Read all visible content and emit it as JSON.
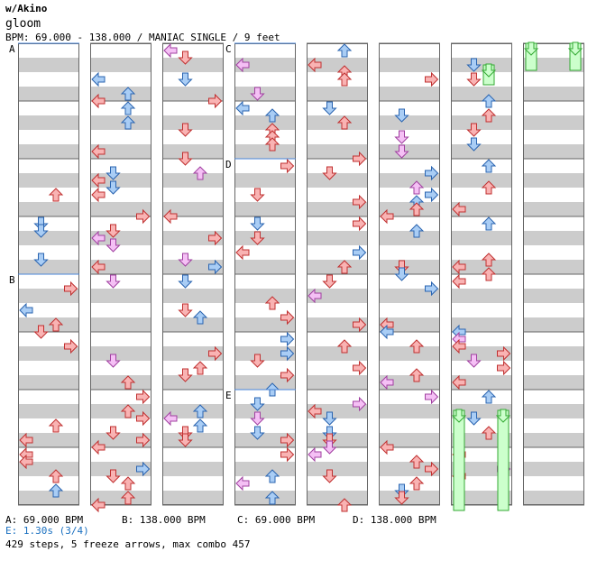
{
  "header": {
    "artist": "w/Akino",
    "title": "gloom",
    "info": "BPM: 69.000 - 138.000 / MANIAC SINGLE / 9 feet"
  },
  "section_markers": [
    "A",
    "B",
    "C",
    "D",
    "E"
  ],
  "footer": {
    "bpm_a": "A: 69.000 BPM",
    "bpm_b": "B: 138.000 BPM",
    "bpm_c": "C: 69.000 BPM",
    "bpm_d": "D: 138.000 BPM",
    "stop": "E: 1.30s (3/4)",
    "summary": "429 steps, 5 freeze arrows, max combo 457"
  },
  "colors": {
    "stripe": "#cccccc",
    "border": "#666666",
    "marker_line": "#4a86d8",
    "arrow_red": "#f9b3b3",
    "arrow_red_stroke": "#c03030",
    "arrow_blue": "#a9cdf5",
    "arrow_blue_stroke": "#2a64b0",
    "arrow_pink": "#f5c0f5",
    "arrow_pink_stroke": "#a040a0",
    "freeze": "#ccffcc",
    "freeze_stroke": "#33aa33",
    "stop_text": "#1a70c0"
  },
  "icons": [
    "arrow-left-icon",
    "arrow-down-icon",
    "arrow-up-icon",
    "arrow-right-icon"
  ]
}
